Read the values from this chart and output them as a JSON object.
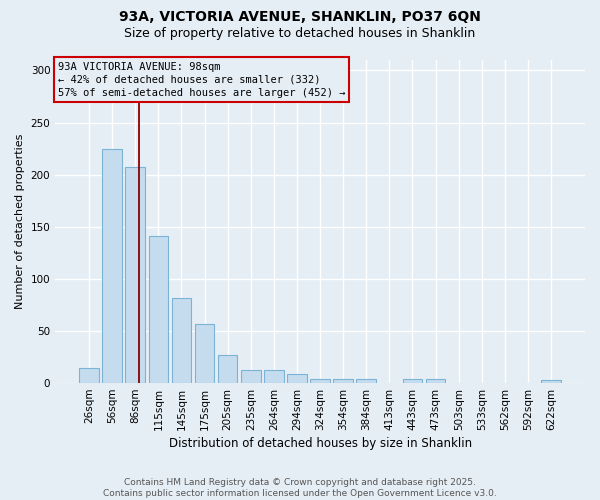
{
  "title1": "93A, VICTORIA AVENUE, SHANKLIN, PO37 6QN",
  "title2": "Size of property relative to detached houses in Shanklin",
  "xlabel": "Distribution of detached houses by size in Shanklin",
  "ylabel": "Number of detached properties",
  "categories": [
    "26sqm",
    "56sqm",
    "86sqm",
    "115sqm",
    "145sqm",
    "175sqm",
    "205sqm",
    "235sqm",
    "264sqm",
    "294sqm",
    "324sqm",
    "354sqm",
    "384sqm",
    "413sqm",
    "443sqm",
    "473sqm",
    "503sqm",
    "533sqm",
    "562sqm",
    "592sqm",
    "622sqm"
  ],
  "values": [
    14,
    225,
    207,
    141,
    82,
    57,
    27,
    13,
    13,
    9,
    4,
    4,
    4,
    0,
    4,
    4,
    0,
    0,
    0,
    0,
    3
  ],
  "bar_color": "#c5dcee",
  "bar_edge_color": "#7ab3d3",
  "bg_color": "#e6eef5",
  "grid_color": "#ffffff",
  "red_line_x": 2.15,
  "annotation_title": "93A VICTORIA AVENUE: 98sqm",
  "annotation_line1": "← 42% of detached houses are smaller (332)",
  "annotation_line2": "57% of semi-detached houses are larger (452) →",
  "footer1": "Contains HM Land Registry data © Crown copyright and database right 2025.",
  "footer2": "Contains public sector information licensed under the Open Government Licence v3.0.",
  "ylim_max": 310,
  "yticks": [
    0,
    50,
    100,
    150,
    200,
    250,
    300
  ]
}
